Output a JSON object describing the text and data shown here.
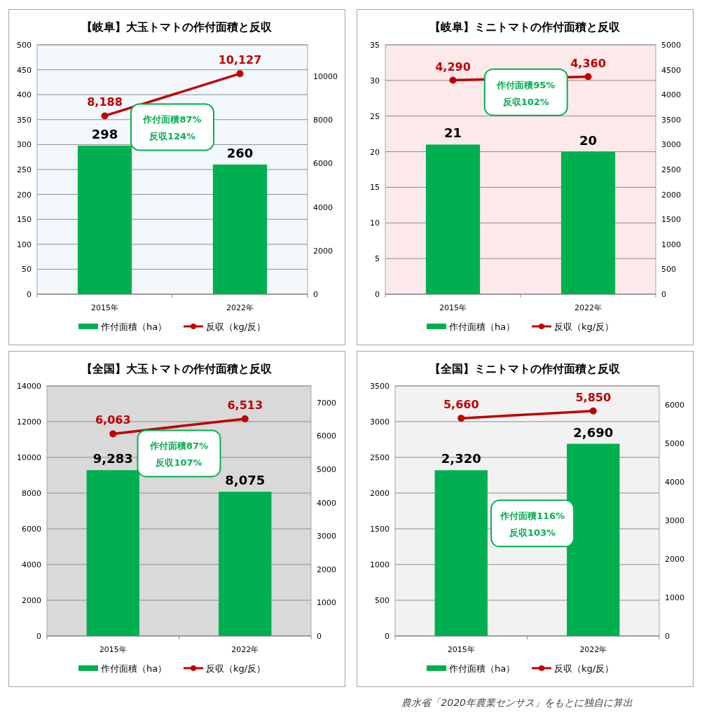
{
  "chart_data": [
    {
      "type": "bar",
      "title": "【岐阜】大玉トマトの作付面積と反収",
      "categories": [
        "2015年",
        "2022年"
      ],
      "series": [
        {
          "name": "作付面積（ha）",
          "color": "#00b050",
          "values": [
            298,
            260
          ],
          "value_labels": [
            "298",
            "260"
          ]
        },
        {
          "name": "反収（kg/反）",
          "type": "line",
          "axis": "y2",
          "color": "#c00000",
          "marker": "circle",
          "values": [
            8188,
            10127
          ],
          "value_labels": [
            "8,188",
            "10,127"
          ]
        }
      ],
      "ylim": [
        0,
        500
      ],
      "yticks": [
        0,
        50,
        100,
        150,
        200,
        250,
        300,
        350,
        400,
        450,
        500
      ],
      "y2lim": [
        0,
        11450
      ],
      "y2ticks": [
        0,
        2000,
        4000,
        6000,
        8000,
        10000
      ],
      "grid": "y",
      "legend": "bottom",
      "annotations": [
        "作付面積87%",
        "反収124%"
      ]
    },
    {
      "type": "bar",
      "title": "【岐阜】ミニトマトの作付面積と反収",
      "categories": [
        "2015年",
        "2022年"
      ],
      "series": [
        {
          "name": "作付面積（ha）",
          "color": "#00b050",
          "values": [
            21,
            20
          ],
          "value_labels": [
            "21",
            "20"
          ]
        },
        {
          "name": "反収（kg/反）",
          "type": "line",
          "axis": "y2",
          "color": "#c00000",
          "marker": "circle",
          "values": [
            4290,
            4360
          ],
          "value_labels": [
            "4,290",
            "4,360"
          ]
        }
      ],
      "ylim": [
        0,
        35
      ],
      "yticks": [
        0,
        5,
        10,
        15,
        20,
        25,
        30,
        35
      ],
      "y2lim": [
        0,
        5000
      ],
      "y2ticks": [
        0,
        500,
        1000,
        1500,
        2000,
        2500,
        3000,
        3500,
        4000,
        4500,
        5000
      ],
      "grid": "y",
      "legend": "bottom",
      "annotations": [
        "作付面積95%",
        "反収102%"
      ]
    },
    {
      "type": "bar",
      "title": "【全国】大玉トマトの作付面積と反収",
      "categories": [
        "2015年",
        "2022年"
      ],
      "series": [
        {
          "name": "作付面積（ha）",
          "color": "#00b050",
          "values": [
            9283,
            8075
          ],
          "value_labels": [
            "9,283",
            "8,075"
          ]
        },
        {
          "name": "反収（kg/反）",
          "type": "line",
          "axis": "y2",
          "color": "#c00000",
          "marker": "circle",
          "values": [
            6063,
            6513
          ],
          "value_labels": [
            "6,063",
            "6,513"
          ]
        }
      ],
      "ylim": [
        0,
        14000
      ],
      "yticks": [
        0,
        2000,
        4000,
        6000,
        8000,
        10000,
        12000,
        14000
      ],
      "y2lim": [
        0,
        7500
      ],
      "y2ticks": [
        0,
        1000,
        2000,
        3000,
        4000,
        5000,
        6000,
        7000
      ],
      "grid": "y",
      "legend": "bottom",
      "annotations": [
        "作付面積87%",
        "反収107%"
      ]
    },
    {
      "type": "bar",
      "title": "【全国】ミニトマトの作付面積と反収",
      "categories": [
        "2015年",
        "2022年"
      ],
      "series": [
        {
          "name": "作付面積（ha）",
          "color": "#00b050",
          "values": [
            2320,
            2690
          ],
          "value_labels": [
            "2,320",
            "2,690"
          ]
        },
        {
          "name": "反収（kg/反）",
          "type": "line",
          "axis": "y2",
          "color": "#c00000",
          "marker": "circle",
          "values": [
            5660,
            5850
          ],
          "value_labels": [
            "5,660",
            "5,850"
          ]
        }
      ],
      "ylim": [
        0,
        3500
      ],
      "yticks": [
        0,
        500,
        1000,
        1500,
        2000,
        2500,
        3000,
        3500
      ],
      "y2lim": [
        0,
        6500
      ],
      "y2ticks": [
        0,
        1000,
        2000,
        3000,
        4000,
        5000,
        6000
      ],
      "grid": "y",
      "legend": "bottom",
      "annotations": [
        "作付面積116%",
        "反収103%",
        "農水省「2020年農業センサス」をもとに独自に算出"
      ]
    }
  ]
}
